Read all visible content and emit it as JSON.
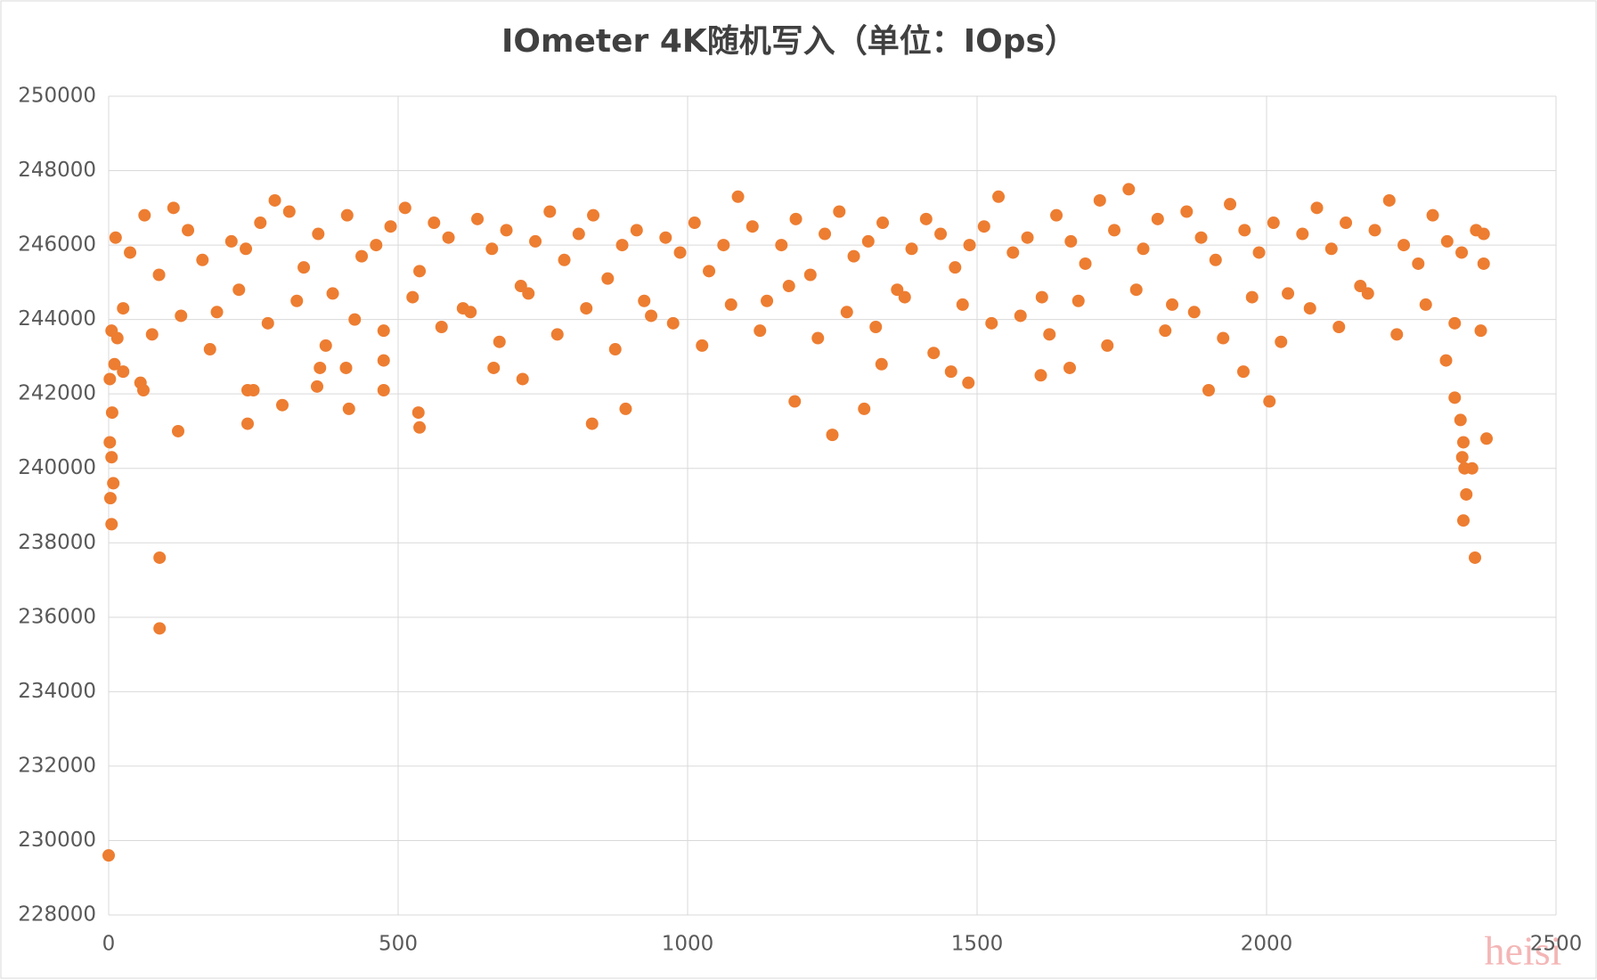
{
  "chart_data": {
    "type": "scatter",
    "title": "IOmeter 4K随机写入（单位：IOps）",
    "watermark": "heisi",
    "color": "#ed7d31",
    "grid": true,
    "xlim": [
      0,
      2500
    ],
    "xticks": [
      0,
      500,
      1000,
      1500,
      2000,
      2500
    ],
    "ylim": [
      228000,
      250000
    ],
    "yticks": [
      228000,
      230000,
      232000,
      234000,
      236000,
      238000,
      240000,
      242000,
      244000,
      246000,
      248000,
      250000
    ],
    "x": [
      0,
      2,
      2,
      3,
      5,
      5,
      6,
      8,
      5,
      10,
      15,
      25,
      55,
      60,
      88,
      88,
      120,
      240,
      240,
      250,
      300,
      360,
      365,
      415,
      410,
      475,
      475,
      535,
      537,
      665,
      715,
      835,
      893,
      1185,
      1250,
      1305,
      1335,
      1455,
      1485,
      1610,
      1660,
      1900,
      1960,
      2005,
      2310,
      2325,
      2335,
      2340,
      2338,
      2342,
      2345,
      2340,
      2355,
      2360,
      2370,
      2380,
      2375,
      2375,
      12,
      37,
      62,
      87,
      112,
      137,
      162,
      187,
      212,
      237,
      262,
      287,
      312,
      337,
      362,
      387,
      412,
      437,
      462,
      487,
      512,
      537,
      562,
      587,
      612,
      637,
      662,
      687,
      712,
      737,
      762,
      787,
      812,
      837,
      862,
      887,
      912,
      937,
      962,
      987,
      1012,
      1037,
      1062,
      1087,
      1112,
      1137,
      1162,
      1187,
      1212,
      1237,
      1262,
      1287,
      1312,
      1337,
      1362,
      1387,
      1412,
      1437,
      1462,
      1487,
      1512,
      1537,
      1562,
      1587,
      1612,
      1637,
      1662,
      1687,
      1712,
      1737,
      1762,
      1787,
      1812,
      1837,
      1862,
      1887,
      1912,
      1937,
      1962,
      1987,
      2012,
      2037,
      2062,
      2087,
      2112,
      2137,
      2162,
      2187,
      2212,
      2237,
      2262,
      2287,
      2312,
      2337,
      2362,
      25,
      75,
      125,
      175,
      225,
      275,
      325,
      375,
      425,
      475,
      525,
      575,
      625,
      675,
      725,
      775,
      825,
      875,
      925,
      975,
      1025,
      1075,
      1125,
      1175,
      1225,
      1275,
      1325,
      1375,
      1425,
      1475,
      1525,
      1575,
      1625,
      1675,
      1725,
      1775,
      1825,
      1875,
      1925,
      1975,
      2025,
      2075,
      2125,
      2175,
      2225,
      2275,
      2325
    ],
    "values": [
      229600,
      242400,
      240700,
      239200,
      240300,
      238500,
      241500,
      239600,
      243700,
      242800,
      243500,
      242600,
      242300,
      242100,
      237600,
      235700,
      241000,
      242100,
      241200,
      242100,
      241700,
      242200,
      242700,
      241600,
      242700,
      242100,
      242900,
      241500,
      241100,
      242700,
      242400,
      241200,
      241600,
      241800,
      240900,
      241600,
      242800,
      242600,
      242300,
      242500,
      242700,
      242100,
      242600,
      241800,
      242900,
      241900,
      241300,
      240700,
      240300,
      240000,
      239300,
      238600,
      240000,
      237600,
      243700,
      240800,
      245500,
      246300,
      246200,
      245800,
      246800,
      245200,
      247000,
      246400,
      245600,
      244200,
      246100,
      245900,
      246600,
      247200,
      246900,
      245400,
      246300,
      244700,
      246800,
      245700,
      246000,
      246500,
      247000,
      245300,
      246600,
      246200,
      244300,
      246700,
      245900,
      246400,
      244900,
      246100,
      246900,
      245600,
      246300,
      246800,
      245100,
      246000,
      246400,
      244100,
      246200,
      245800,
      246600,
      245300,
      246000,
      247300,
      246500,
      244500,
      246000,
      246700,
      245200,
      246300,
      246900,
      245700,
      246100,
      246600,
      244800,
      245900,
      246700,
      246300,
      245400,
      246000,
      246500,
      247300,
      245800,
      246200,
      244600,
      246800,
      246100,
      245500,
      247200,
      246400,
      247500,
      245900,
      246700,
      244400,
      246900,
      246200,
      245600,
      247100,
      246400,
      245800,
      246600,
      244700,
      246300,
      247000,
      245900,
      246600,
      244900,
      246400,
      247200,
      246000,
      245500,
      246800,
      246100,
      245800,
      246400,
      244300,
      243600,
      244100,
      243200,
      244800,
      243900,
      244500,
      243300,
      244000,
      243700,
      244600,
      243800,
      244200,
      243400,
      244700,
      243600,
      244300,
      243200,
      244500,
      243900,
      243300,
      244400,
      243700,
      244900,
      243500,
      244200,
      243800,
      244600,
      243100,
      244400,
      243900,
      244100,
      243600,
      244500,
      243300,
      244800,
      243700,
      244200,
      243500,
      244600,
      243400,
      244300,
      243800,
      244700,
      243600,
      244400,
      243900
    ]
  }
}
